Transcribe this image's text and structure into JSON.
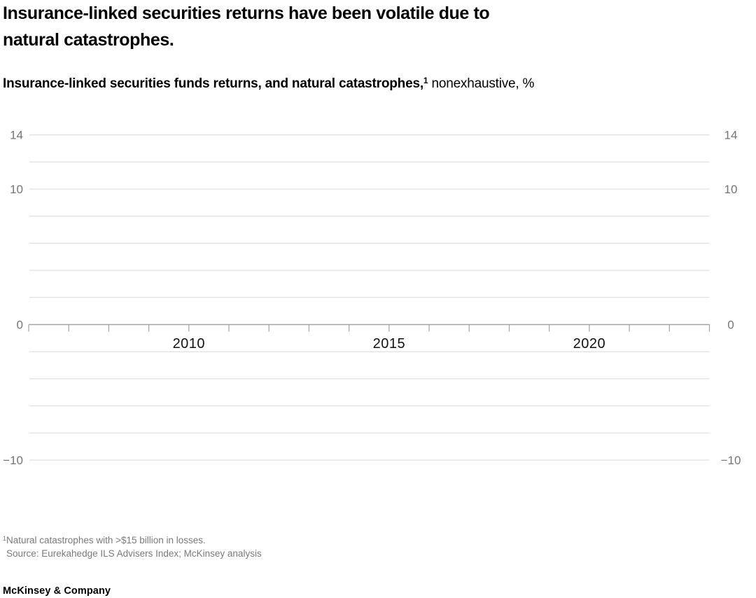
{
  "title": {
    "line1": "Insurance-linked securities returns have been volatile due to",
    "line2": "natural catastrophes."
  },
  "subtitle": {
    "bold": "Insurance-linked securities funds returns, and natural catastrophes,",
    "superscript": "1",
    "regular": " nonexhaustive, %"
  },
  "chart_data": {
    "type": "line",
    "title": "Insurance-linked securities funds returns, and natural catastrophes, nonexhaustive, %",
    "x_axis": {
      "start_year": 2006,
      "end_year": 2023,
      "tick_interval_years": 1,
      "labeled_years": [
        2010,
        2015,
        2020
      ]
    },
    "y_axis": {
      "min": -10,
      "max": 14,
      "gridline_step": 2,
      "labeled_values": [
        14,
        10,
        0,
        -10
      ],
      "unit": "%",
      "labels_on_both_sides": true
    },
    "grid": true,
    "legend": "none",
    "series": []
  },
  "footnote": {
    "superscript": "1",
    "text": "Natural catastrophes with >$15 billion in losses."
  },
  "source": {
    "text": "Source: Eurekahedge ILS Advisers Index; McKinsey analysis"
  },
  "footer": {
    "brand": "McKinsey & Company"
  },
  "colors": {
    "background": "#ffffff",
    "text": "#000000",
    "gridline": "#d9d9d9",
    "axis_line": "#a3a3a3",
    "axis_label_gray": "#757575",
    "year_label": "#111111",
    "footnote_gray": "#7a7a7a"
  }
}
